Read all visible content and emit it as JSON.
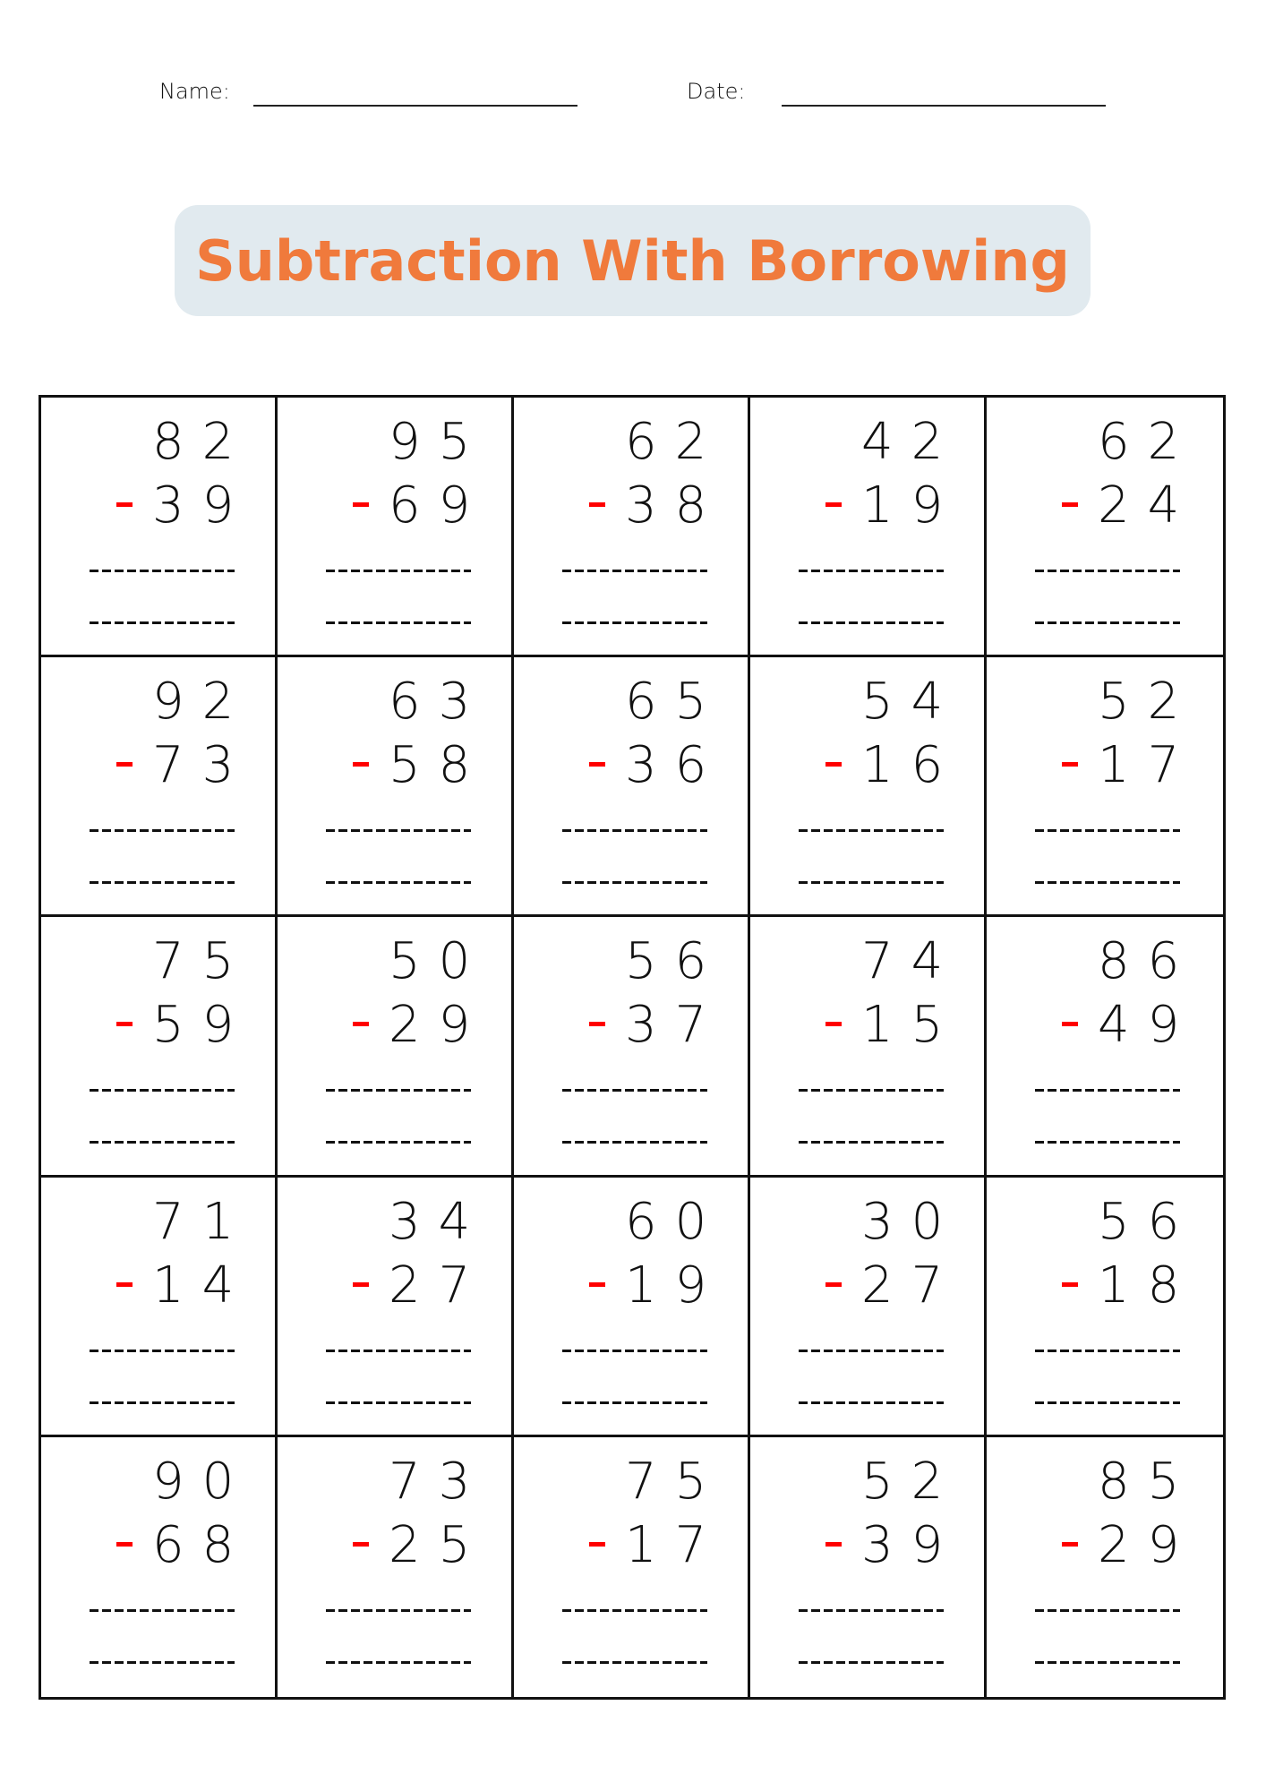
{
  "header": {
    "name_label": "Name:",
    "date_label": "Date:"
  },
  "title": "Subtraction With Borrowing",
  "colors": {
    "title": "#f07a3c",
    "title_bg": "#e1eaef",
    "minus": "#ff0000"
  },
  "problems": [
    {
      "top": "82",
      "bottom": "39"
    },
    {
      "top": "95",
      "bottom": "69"
    },
    {
      "top": "62",
      "bottom": "38"
    },
    {
      "top": "42",
      "bottom": "19"
    },
    {
      "top": "62",
      "bottom": "24"
    },
    {
      "top": "92",
      "bottom": "73"
    },
    {
      "top": "63",
      "bottom": "58"
    },
    {
      "top": "65",
      "bottom": "36"
    },
    {
      "top": "54",
      "bottom": "16"
    },
    {
      "top": "52",
      "bottom": "17"
    },
    {
      "top": "75",
      "bottom": "59"
    },
    {
      "top": "50",
      "bottom": "29"
    },
    {
      "top": "56",
      "bottom": "37"
    },
    {
      "top": "74",
      "bottom": "15"
    },
    {
      "top": "86",
      "bottom": "49"
    },
    {
      "top": "71",
      "bottom": "14"
    },
    {
      "top": "34",
      "bottom": "27"
    },
    {
      "top": "60",
      "bottom": "19"
    },
    {
      "top": "30",
      "bottom": "27"
    },
    {
      "top": "56",
      "bottom": "18"
    },
    {
      "top": "90",
      "bottom": "68"
    },
    {
      "top": "73",
      "bottom": "25"
    },
    {
      "top": "75",
      "bottom": "17"
    },
    {
      "top": "52",
      "bottom": "39"
    },
    {
      "top": "85",
      "bottom": "29"
    }
  ]
}
